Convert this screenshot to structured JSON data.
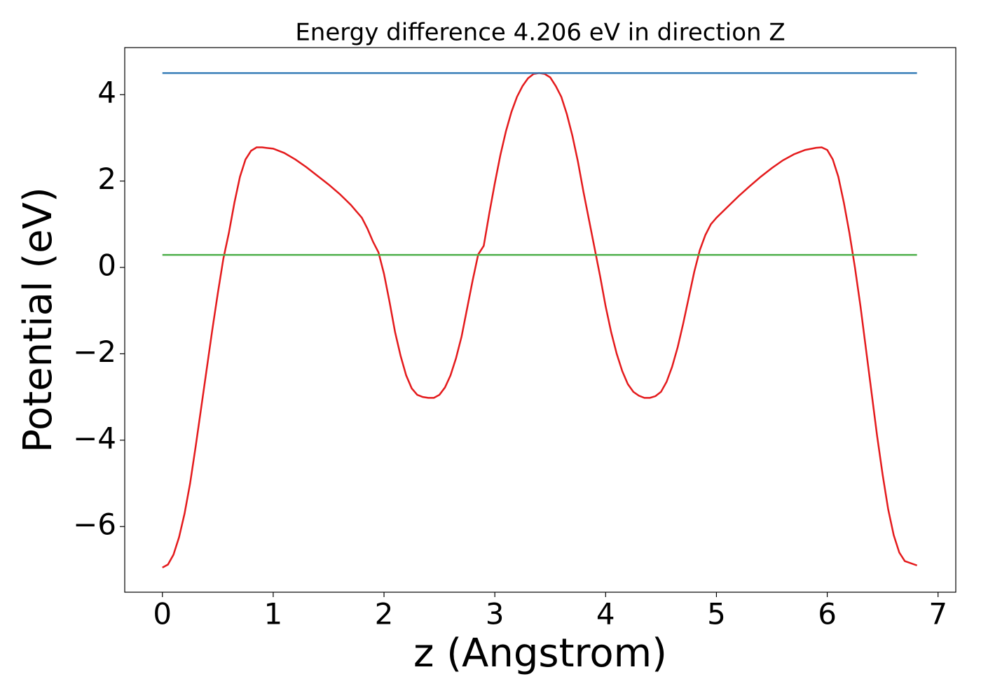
{
  "chart_data": {
    "type": "line",
    "title": "Energy difference 4.206 eV in direction Z",
    "xlabel": "z (Angstrom)",
    "ylabel": "Potential (eV)",
    "xlim": [
      -0.34,
      7.16
    ],
    "ylim": [
      -7.52,
      5.09
    ],
    "xticks": [
      0,
      1,
      2,
      3,
      4,
      5,
      6,
      7
    ],
    "yticks": [
      {
        "value": -6,
        "label": "−6"
      },
      {
        "value": -4,
        "label": "−4"
      },
      {
        "value": -2,
        "label": "−2"
      },
      0,
      2,
      4
    ],
    "series": [
      {
        "color": "#e41a1c",
        "x": [
          0,
          0.05,
          0.1,
          0.15,
          0.2,
          0.25,
          0.3,
          0.35,
          0.4,
          0.45,
          0.5,
          0.55,
          0.6,
          0.65,
          0.7,
          0.75,
          0.8,
          0.85,
          0.9,
          1.0,
          1.1,
          1.2,
          1.3,
          1.4,
          1.5,
          1.6,
          1.7,
          1.8,
          1.85,
          1.9,
          1.95,
          2.0,
          2.05,
          2.1,
          2.15,
          2.2,
          2.25,
          2.3,
          2.35,
          2.4,
          2.45,
          2.5,
          2.55,
          2.6,
          2.65,
          2.7,
          2.75,
          2.8,
          2.85,
          2.9,
          2.95,
          3.0,
          3.05,
          3.1,
          3.15,
          3.2,
          3.25,
          3.3,
          3.35,
          3.4,
          3.45,
          3.5,
          3.55,
          3.6,
          3.65,
          3.7,
          3.75,
          3.8,
          3.85,
          3.9,
          3.95,
          4.0,
          4.05,
          4.1,
          4.15,
          4.2,
          4.25,
          4.3,
          4.35,
          4.4,
          4.45,
          4.5,
          4.55,
          4.6,
          4.65,
          4.7,
          4.75,
          4.8,
          4.85,
          4.9,
          4.95,
          5.0,
          5.1,
          5.2,
          5.3,
          5.4,
          5.5,
          5.6,
          5.7,
          5.8,
          5.9,
          5.95,
          6.0,
          6.05,
          6.1,
          6.15,
          6.2,
          6.25,
          6.3,
          6.35,
          6.4,
          6.45,
          6.5,
          6.55,
          6.6,
          6.65,
          6.7,
          6.81
        ],
        "values": [
          -6.95,
          -6.88,
          -6.65,
          -6.25,
          -5.7,
          -5.0,
          -4.15,
          -3.25,
          -2.35,
          -1.45,
          -0.6,
          0.2,
          0.8,
          1.5,
          2.1,
          2.5,
          2.7,
          2.78,
          2.78,
          2.75,
          2.65,
          2.5,
          2.32,
          2.12,
          1.92,
          1.7,
          1.45,
          1.15,
          0.9,
          0.6,
          0.35,
          -0.15,
          -0.8,
          -1.5,
          -2.05,
          -2.5,
          -2.8,
          -2.95,
          -3.0,
          -3.02,
          -3.02,
          -2.95,
          -2.78,
          -2.5,
          -2.1,
          -1.6,
          -0.95,
          -0.3,
          0.3,
          0.5,
          1.25,
          1.95,
          2.6,
          3.15,
          3.6,
          3.95,
          4.2,
          4.38,
          4.48,
          4.5,
          4.48,
          4.4,
          4.2,
          3.95,
          3.55,
          3.05,
          2.45,
          1.75,
          1.1,
          0.45,
          -0.2,
          -0.9,
          -1.5,
          -2.0,
          -2.4,
          -2.7,
          -2.88,
          -2.97,
          -3.02,
          -3.02,
          -2.98,
          -2.88,
          -2.65,
          -2.3,
          -1.85,
          -1.3,
          -0.7,
          -0.1,
          0.4,
          0.75,
          1.0,
          1.15,
          1.4,
          1.65,
          1.88,
          2.1,
          2.3,
          2.48,
          2.62,
          2.72,
          2.77,
          2.78,
          2.72,
          2.5,
          2.1,
          1.5,
          0.8,
          0.0,
          -0.9,
          -1.9,
          -2.9,
          -3.9,
          -4.8,
          -5.6,
          -6.2,
          -6.6,
          -6.8,
          -6.9
        ]
      },
      {
        "color": "#377eb8",
        "x": [
          0,
          6.81
        ],
        "values": [
          4.5,
          4.5
        ]
      },
      {
        "color": "#4daf4a",
        "x": [
          0,
          6.81
        ],
        "values": [
          0.29,
          0.29
        ]
      }
    ]
  }
}
